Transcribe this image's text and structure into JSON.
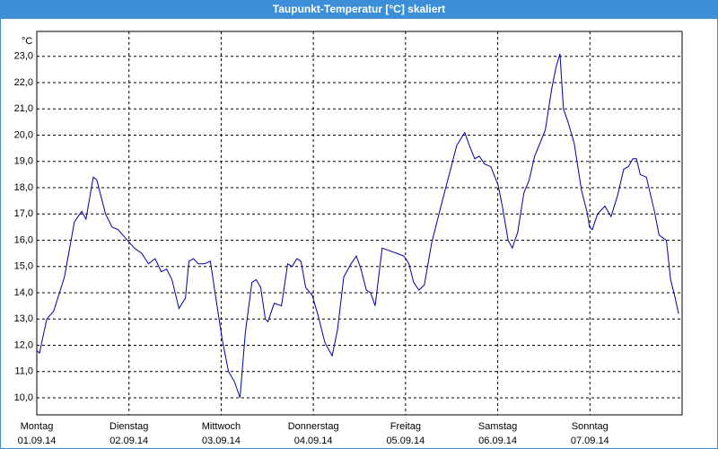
{
  "chart_data": {
    "type": "line",
    "title": "Taupunkt-Temperatur [°C] skaliert",
    "y_unit": "°C",
    "xlim": [
      0,
      168
    ],
    "ylim": [
      9.35,
      23.95
    ],
    "yticks": [
      {
        "value": 10,
        "label": "10,0"
      },
      {
        "value": 11,
        "label": "11,0"
      },
      {
        "value": 12,
        "label": "12,0"
      },
      {
        "value": 13,
        "label": "13,0"
      },
      {
        "value": 14,
        "label": "14,0"
      },
      {
        "value": 15,
        "label": "15,0"
      },
      {
        "value": 16,
        "label": "16,0"
      },
      {
        "value": 17,
        "label": "17,0"
      },
      {
        "value": 18,
        "label": "18,0"
      },
      {
        "value": 19,
        "label": "19,0"
      },
      {
        "value": 20,
        "label": "20,0"
      },
      {
        "value": 21,
        "label": "21,0"
      },
      {
        "value": 22,
        "label": "22,0"
      },
      {
        "value": 23,
        "label": "23,0"
      }
    ],
    "xticks": [
      {
        "value": 0,
        "label": "Montag"
      },
      {
        "value": 24,
        "label": "Dienstag"
      },
      {
        "value": 48,
        "label": "Mittwoch"
      },
      {
        "value": 72,
        "label": "Donnerstag"
      },
      {
        "value": 96,
        "label": "Freitag"
      },
      {
        "value": 120,
        "label": "Samstag"
      },
      {
        "value": 144,
        "label": "Sonntag"
      }
    ],
    "xtick_dates": [
      "01.09.14",
      "02.09.14",
      "03.09.14",
      "04.09.14",
      "05.09.14",
      "06.09.14",
      "07.09.14"
    ],
    "grid": true,
    "series": [
      {
        "color": "#0000a0",
        "x": [
          0,
          0.7,
          2.6,
          4.4,
          7.2,
          9.8,
          11.7,
          12.8,
          14.7,
          15.6,
          17.9,
          19.6,
          21.2,
          23,
          25.4,
          27.3,
          29.1,
          30.8,
          32.4,
          33.8,
          35.2,
          37,
          38.7,
          39.6,
          40.8,
          42,
          43.6,
          45.2,
          46.4,
          48.3,
          49.9,
          51.5,
          52.9,
          54.3,
          56,
          57.1,
          58.3,
          59.5,
          60.2,
          61.8,
          63.7,
          65.3,
          66.5,
          67.7,
          68.8,
          70,
          71.7,
          73.3,
          75,
          76.9,
          78.3,
          79.9,
          81.8,
          83.2,
          84.4,
          85.8,
          86.9,
          88.1,
          89.9,
          91.8,
          93.7,
          95.6,
          96.9,
          98.1,
          99.5,
          100.9,
          102.8,
          104.9,
          106.3,
          107.9,
          109.3,
          111.4,
          112.4,
          114,
          115.2,
          116.6,
          118.2,
          120.1,
          121.2,
          122.7,
          123.8,
          125.2,
          126.8,
          128.2,
          129.6,
          131.3,
          132.4,
          134.1,
          135.2,
          136.2,
          137.1,
          138.3,
          139.9,
          141.8,
          143.2,
          143.9,
          144.6,
          146,
          147.9,
          149.5,
          151.2,
          152.8,
          154,
          155.2,
          156.1,
          157.1,
          158.7,
          160.8,
          162,
          162.9,
          163.9,
          165,
          166.2,
          167.1
        ],
        "values": [
          11.8,
          11.7,
          13.0,
          13.3,
          14.6,
          16.7,
          17.1,
          16.8,
          18.4,
          18.3,
          17.0,
          16.5,
          16.4,
          16.1,
          15.7,
          15.5,
          15.1,
          15.3,
          14.8,
          14.9,
          14.5,
          13.4,
          13.8,
          15.2,
          15.3,
          15.1,
          15.1,
          15.2,
          14.0,
          12.2,
          11.0,
          10.6,
          10.0,
          12.5,
          14.4,
          14.5,
          14.2,
          13.0,
          12.9,
          13.6,
          13.5,
          15.1,
          15.0,
          15.3,
          15.2,
          14.2,
          13.9,
          13.1,
          12.1,
          11.6,
          12.6,
          14.6,
          15.1,
          15.4,
          14.9,
          14.1,
          14.0,
          13.5,
          15.7,
          15.6,
          15.5,
          15.4,
          15.1,
          14.4,
          14.1,
          14.3,
          15.9,
          17.1,
          17.9,
          18.8,
          19.6,
          20.1,
          19.7,
          19.1,
          19.2,
          18.9,
          18.8,
          18.1,
          17.3,
          16.0,
          15.7,
          16.3,
          17.8,
          18.3,
          19.2,
          19.8,
          20.2,
          21.8,
          22.6,
          23.1,
          21.0,
          20.5,
          19.7,
          17.9,
          17.1,
          16.5,
          16.4,
          17.0,
          17.3,
          16.9,
          17.7,
          18.7,
          18.8,
          19.1,
          19.1,
          18.5,
          18.4,
          17.1,
          16.2,
          16.1,
          16.0,
          14.5,
          13.8,
          13.2
        ]
      }
    ]
  }
}
